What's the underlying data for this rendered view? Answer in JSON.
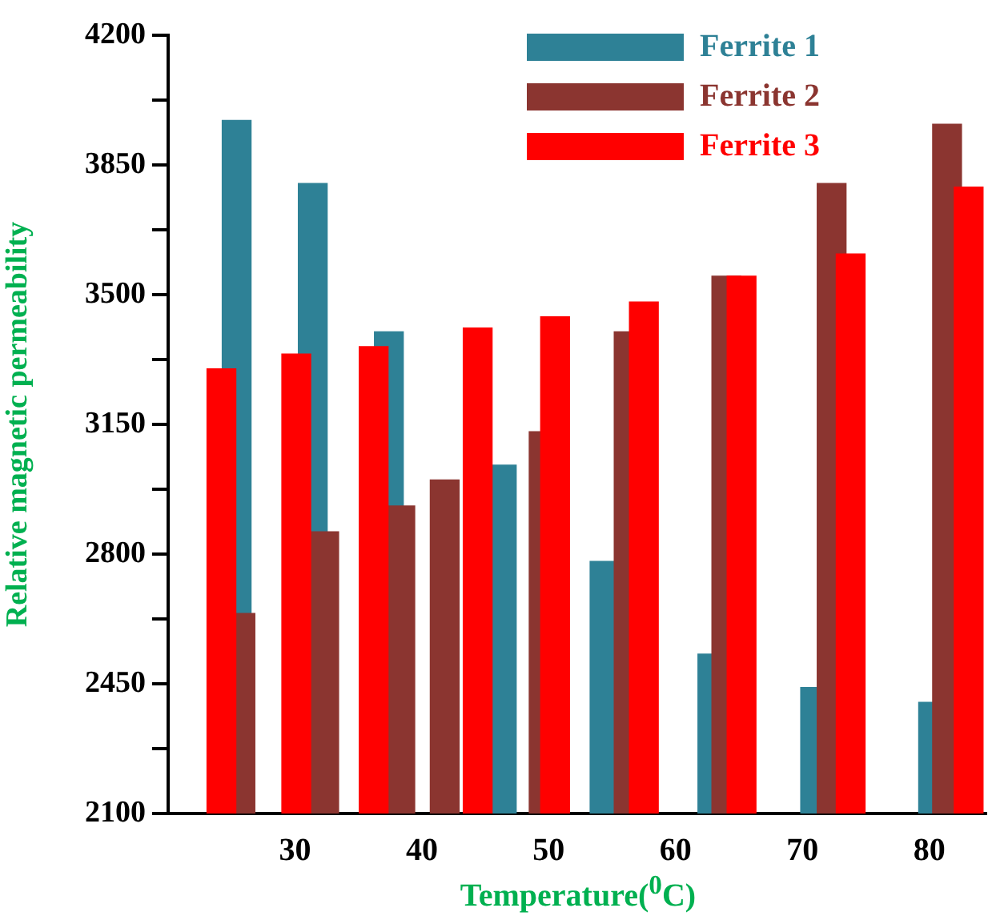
{
  "chart_data": {
    "type": "bar",
    "xlabel": "Temperature($^{0}$C)",
    "ylabel": "Relative magnetic permeability",
    "series": [
      {
        "name": "Ferrite 1",
        "color": "#2e8196",
        "x": [
          25.4,
          31.4,
          37.4,
          46.3,
          54.4,
          62.9,
          71.0,
          80.3
        ],
        "values": [
          3970,
          3800,
          3400,
          3040,
          2780,
          2530,
          2440,
          2400
        ]
      },
      {
        "name": "Ferrite 2",
        "color": "#8b3530",
        "x": [
          25.7,
          32.3,
          38.3,
          41.8,
          49.6,
          56.3,
          64.0,
          72.3,
          81.4
        ],
        "values": [
          2640,
          2860,
          2930,
          3000,
          3130,
          3400,
          3550,
          3800,
          3960
        ]
      },
      {
        "name": "Ferrite 3",
        "color": "#ff0000",
        "x": [
          24.2,
          30.1,
          36.2,
          44.4,
          50.5,
          57.5,
          65.2,
          73.8,
          83.1
        ],
        "values": [
          3300,
          3340,
          3360,
          3410,
          3440,
          3480,
          3550,
          3610,
          3790
        ]
      }
    ],
    "xlim": [
      20,
      84.5
    ],
    "xticks": [
      30,
      40,
      50,
      60,
      70,
      80
    ],
    "ylim": [
      2100,
      4200
    ],
    "yticks": [
      2100,
      {
        "value": 2275,
        "label": null
      },
      2450,
      {
        "value": 2625,
        "label": null
      },
      2800,
      {
        "value": 2975,
        "label": null
      },
      3150,
      {
        "value": 3325,
        "label": null
      },
      3500,
      {
        "value": 3675,
        "label": null
      },
      3850,
      {
        "value": 4025,
        "label": null
      },
      4200
    ],
    "grid": false,
    "legend": "top right"
  }
}
